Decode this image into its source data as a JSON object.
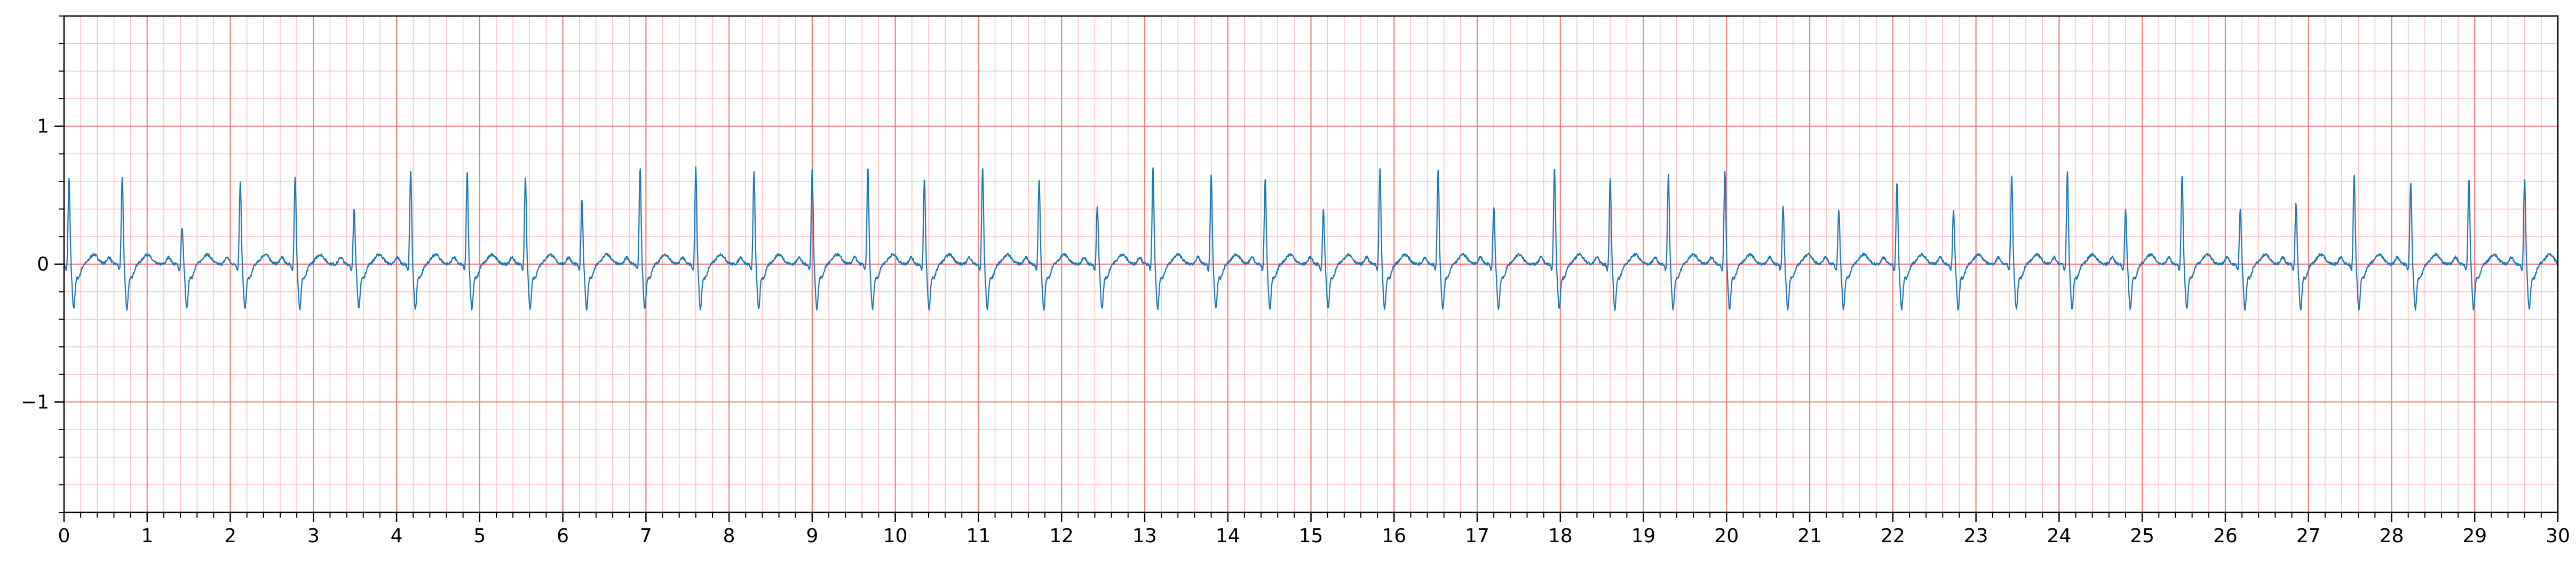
{
  "chart_data": {
    "type": "line",
    "title": "",
    "xlabel": "",
    "ylabel": "",
    "xlim": [
      0,
      30
    ],
    "ylim": [
      -1.8,
      1.8
    ],
    "x_ticks": [
      "0",
      "1",
      "2",
      "3",
      "4",
      "5",
      "6",
      "7",
      "8",
      "9",
      "10",
      "11",
      "12",
      "13",
      "14",
      "15",
      "16",
      "17",
      "18",
      "19",
      "20",
      "21",
      "22",
      "23",
      "24",
      "25",
      "26",
      "27",
      "28",
      "29",
      "30"
    ],
    "y_ticks": [
      {
        "value": 1,
        "label": "1"
      },
      {
        "value": 0,
        "label": "0"
      },
      {
        "value": -1,
        "label": "−1"
      }
    ],
    "grid": {
      "major_x": 1,
      "major_y": 1,
      "minor_x": 0.2,
      "minor_y": 0.2,
      "visible": true
    },
    "colors": {
      "trace": "#1f77b4",
      "major_grid": "#f08080",
      "minor_grid": "#fbc4c4",
      "axes": "#000000"
    },
    "series": [
      {
        "peak_times_s": [
          0.06,
          0.7,
          1.42,
          2.12,
          2.78,
          3.49,
          4.17,
          4.85,
          5.55,
          6.23,
          6.93,
          7.6,
          8.3,
          9.0,
          9.67,
          10.35,
          11.05,
          11.73,
          12.43,
          13.1,
          13.8,
          14.45,
          15.15,
          15.83,
          16.53,
          17.2,
          17.93,
          18.6,
          19.3,
          19.98,
          20.68,
          21.35,
          22.05,
          22.73,
          23.43,
          24.1,
          24.8,
          25.48,
          26.18,
          26.85,
          27.55,
          28.23,
          28.93,
          29.6
        ],
        "peak_values_mv": [
          0.62,
          0.63,
          0.27,
          0.6,
          0.63,
          0.4,
          0.68,
          0.67,
          0.63,
          0.47,
          0.7,
          0.7,
          0.67,
          0.7,
          0.7,
          0.62,
          0.7,
          0.62,
          0.42,
          0.7,
          0.65,
          0.62,
          0.4,
          0.7,
          0.7,
          0.42,
          0.7,
          0.62,
          0.65,
          0.67,
          0.42,
          0.4,
          0.6,
          0.4,
          0.65,
          0.67,
          0.4,
          0.65,
          0.4,
          0.45,
          0.65,
          0.6,
          0.62,
          0.62
        ],
        "baseline_mv": 0.0,
        "s_wave_min_mv": -0.36
      }
    ]
  }
}
